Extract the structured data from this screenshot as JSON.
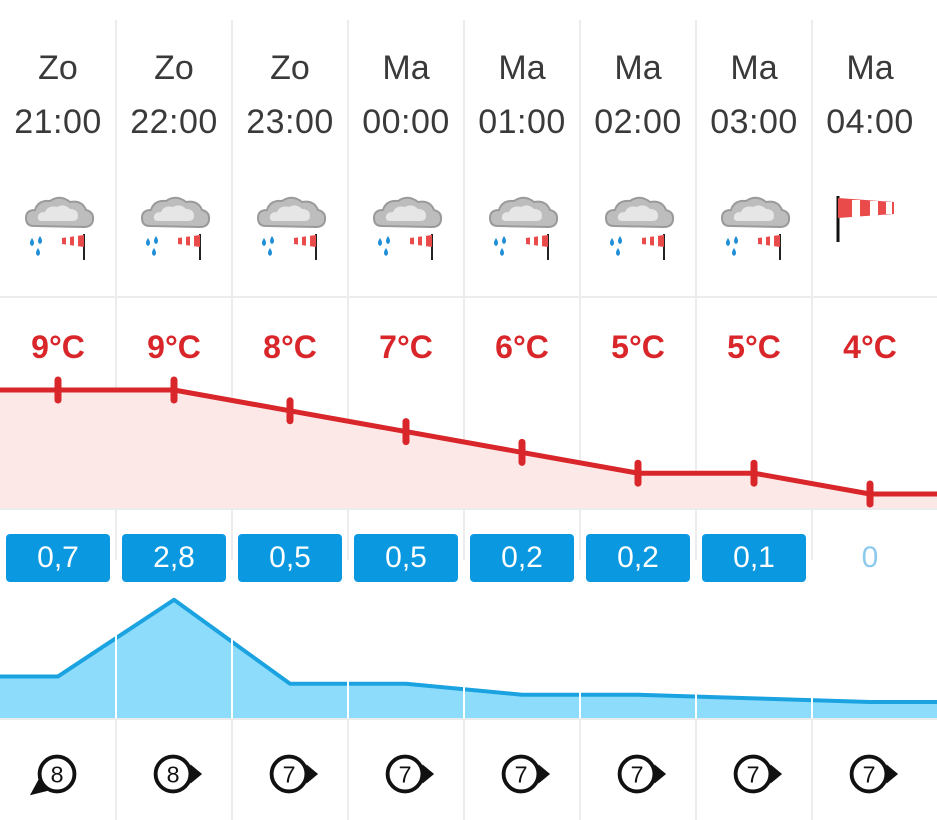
{
  "hours": [
    {
      "day": "Zo",
      "time": "21:00",
      "icon": "cloud-rain-wind-icon",
      "temp": "9°C",
      "temp_value": 9,
      "rain": "0,7",
      "rain_value": 0.7,
      "wind_force": "8",
      "wind_direction": "north-west"
    },
    {
      "day": "Zo",
      "time": "22:00",
      "icon": "cloud-rain-wind-icon",
      "temp": "9°C",
      "temp_value": 9,
      "rain": "2,8",
      "rain_value": 2.8,
      "wind_force": "8",
      "wind_direction": "west"
    },
    {
      "day": "Zo",
      "time": "23:00",
      "icon": "cloud-rain-wind-icon",
      "temp": "8°C",
      "temp_value": 8,
      "rain": "0,5",
      "rain_value": 0.5,
      "wind_force": "7",
      "wind_direction": "west"
    },
    {
      "day": "Ma",
      "time": "00:00",
      "icon": "cloud-rain-wind-icon",
      "temp": "7°C",
      "temp_value": 7,
      "rain": "0,5",
      "rain_value": 0.5,
      "wind_force": "7",
      "wind_direction": "west"
    },
    {
      "day": "Ma",
      "time": "01:00",
      "icon": "cloud-rain-wind-icon",
      "temp": "6°C",
      "temp_value": 6,
      "rain": "0,2",
      "rain_value": 0.2,
      "wind_force": "7",
      "wind_direction": "west"
    },
    {
      "day": "Ma",
      "time": "02:00",
      "icon": "cloud-rain-wind-icon",
      "temp": "5°C",
      "temp_value": 5,
      "rain": "0,2",
      "rain_value": 0.2,
      "wind_force": "7",
      "wind_direction": "west"
    },
    {
      "day": "Ma",
      "time": "03:00",
      "icon": "cloud-rain-wind-icon",
      "temp": "5°C",
      "temp_value": 5,
      "rain": "0,1",
      "rain_value": 0.1,
      "wind_force": "7",
      "wind_direction": "west"
    },
    {
      "day": "Ma",
      "time": "04:00",
      "icon": "windsock-icon",
      "temp": "4°C",
      "temp_value": 4,
      "rain": "0",
      "rain_value": 0,
      "wind_force": "7",
      "wind_direction": "west"
    }
  ],
  "chart_data": [
    {
      "type": "line",
      "x": [
        "21:00",
        "22:00",
        "23:00",
        "00:00",
        "01:00",
        "02:00",
        "03:00",
        "04:00"
      ],
      "series": [
        {
          "values": [
            9,
            9,
            8,
            7,
            6,
            5,
            5,
            4
          ]
        }
      ]
    },
    {
      "type": "area",
      "x": [
        "21:00",
        "22:00",
        "23:00",
        "00:00",
        "01:00",
        "02:00",
        "03:00",
        "04:00"
      ],
      "series": [
        {
          "values": [
            0.7,
            2.8,
            0.5,
            0.5,
            0.2,
            0.2,
            0.1,
            0
          ]
        }
      ]
    }
  ],
  "colors": {
    "temp": "#d9262a",
    "temp_fill": "#fde8e8",
    "rain_line": "#1aa3e0",
    "rain_fill": "#8ddcfb",
    "rain_box": "#0a99e0"
  }
}
